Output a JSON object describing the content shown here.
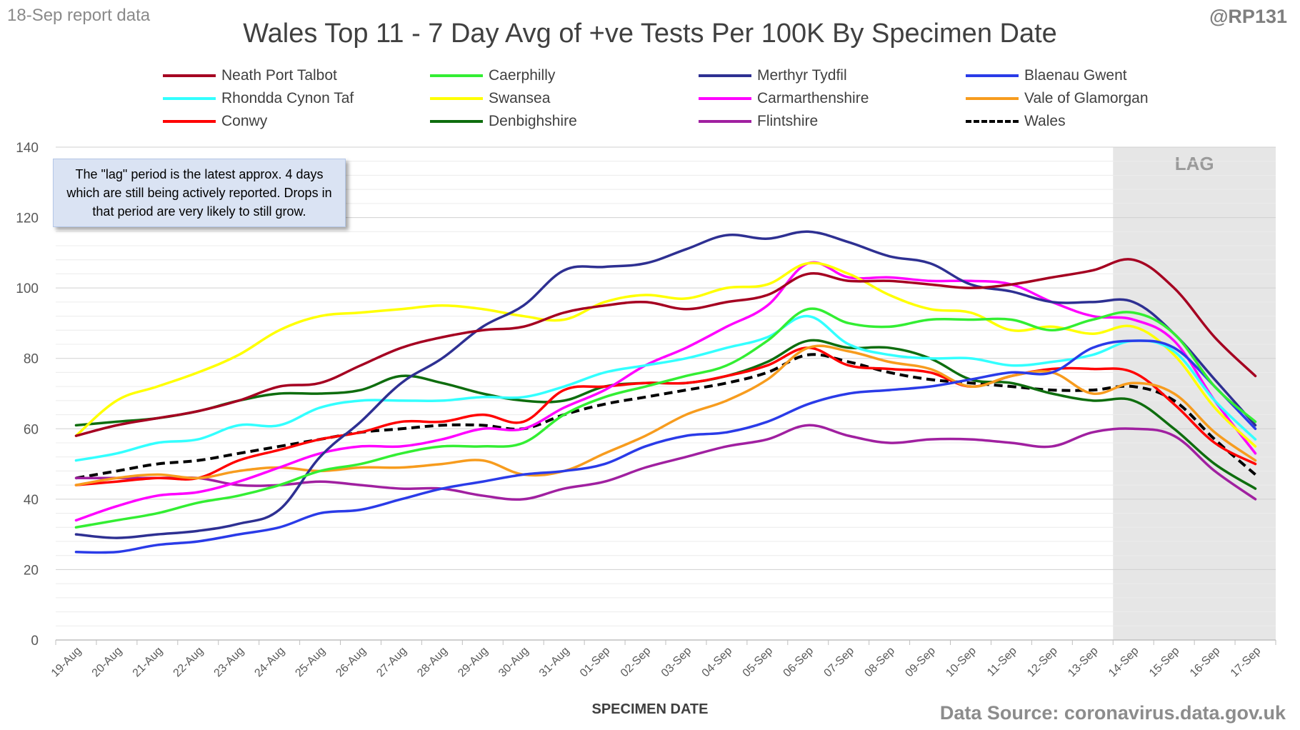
{
  "header": {
    "report_date": "18-Sep report data",
    "handle": "@RP131",
    "title": "Wales Top 11 - 7 Day Avg of +ve Tests Per 100K By Specimen Date"
  },
  "note": "The \"lag\" period is the latest approx. 4 days which are still being actively reported.  Drops in that period are very likely to still grow.",
  "footer": {
    "data_source": "Data Source: coronavirus.data.gov.uk"
  },
  "chart_data": {
    "type": "line",
    "title": "Wales Top 11 - 7 Day Avg of +ve Tests Per 100K By Specimen Date",
    "xlabel": "SPECIMEN DATE",
    "ylabel": "",
    "ylim": [
      0,
      140
    ],
    "yticks": [
      "0",
      "20",
      "40",
      "60",
      "80",
      "100",
      "120",
      "140"
    ],
    "grid": "horizontal",
    "legend_position": "top",
    "lag_label": "LAG",
    "lag_range": [
      "14-Sep",
      "17-Sep"
    ],
    "categories": [
      "19-Aug",
      "20-Aug",
      "21-Aug",
      "22-Aug",
      "23-Aug",
      "24-Aug",
      "25-Aug",
      "26-Aug",
      "27-Aug",
      "28-Aug",
      "29-Aug",
      "30-Aug",
      "31-Aug",
      "01-Sep",
      "02-Sep",
      "03-Sep",
      "04-Sep",
      "05-Sep",
      "06-Sep",
      "07-Sep",
      "08-Sep",
      "09-Sep",
      "10-Sep",
      "11-Sep",
      "12-Sep",
      "13-Sep",
      "14-Sep",
      "15-Sep",
      "16-Sep",
      "17-Sep"
    ],
    "series": [
      {
        "name": "Neath Port Talbot",
        "color": "#a50021",
        "dashed": false,
        "values": [
          58,
          61,
          63,
          65,
          68,
          72,
          73,
          78,
          83,
          86,
          88,
          89,
          93,
          95,
          96,
          94,
          96,
          98,
          104,
          102,
          102,
          101,
          100,
          101,
          103,
          105,
          108,
          100,
          86,
          75
        ]
      },
      {
        "name": "Caerphilly",
        "color": "#33ee33",
        "dashed": false,
        "values": [
          32,
          34,
          36,
          39,
          41,
          44,
          48,
          50,
          53,
          55,
          55,
          56,
          64,
          69,
          72,
          75,
          78,
          85,
          94,
          90,
          89,
          91,
          91,
          91,
          88,
          91,
          93,
          87,
          72,
          62
        ]
      },
      {
        "name": "Merthyr Tydfil",
        "color": "#2e3092",
        "dashed": false,
        "values": [
          30,
          29,
          30,
          31,
          33,
          37,
          52,
          62,
          73,
          80,
          89,
          95,
          105,
          106,
          107,
          111,
          115,
          114,
          116,
          113,
          109,
          107,
          101,
          99,
          96,
          96,
          96,
          87,
          74,
          61
        ]
      },
      {
        "name": "Blaenau Gwent",
        "color": "#2a3be8",
        "dashed": false,
        "values": [
          25,
          25,
          27,
          28,
          30,
          32,
          36,
          37,
          40,
          43,
          45,
          47,
          48,
          50,
          55,
          58,
          59,
          62,
          67,
          70,
          71,
          72,
          74,
          76,
          76,
          83,
          85,
          83,
          72,
          60
        ]
      },
      {
        "name": "Rhondda Cynon Taf",
        "color": "#33ffff",
        "dashed": false,
        "values": [
          51,
          53,
          56,
          57,
          61,
          61,
          66,
          68,
          68,
          68,
          69,
          69,
          72,
          76,
          78,
          80,
          83,
          86,
          92,
          84,
          81,
          80,
          80,
          78,
          79,
          81,
          85,
          82,
          68,
          57
        ]
      },
      {
        "name": "Swansea",
        "color": "#ffff00",
        "dashed": false,
        "values": [
          58,
          68,
          72,
          76,
          81,
          88,
          92,
          93,
          94,
          95,
          94,
          92,
          91,
          96,
          98,
          97,
          100,
          101,
          107,
          104,
          98,
          94,
          93,
          88,
          89,
          87,
          89,
          81,
          66,
          55
        ]
      },
      {
        "name": "Carmarthenshire",
        "color": "#ff00ff",
        "dashed": false,
        "values": [
          34,
          38,
          41,
          42,
          45,
          49,
          53,
          55,
          55,
          57,
          60,
          60,
          66,
          71,
          78,
          83,
          89,
          95,
          107,
          103,
          103,
          102,
          102,
          101,
          96,
          92,
          91,
          85,
          68,
          53
        ]
      },
      {
        "name": "Vale of Glamorgan",
        "color": "#f79c1e",
        "dashed": false,
        "values": [
          44,
          46,
          47,
          46,
          48,
          49,
          48,
          49,
          49,
          50,
          51,
          47,
          48,
          53,
          58,
          64,
          68,
          74,
          83,
          82,
          79,
          77,
          72,
          75,
          76,
          70,
          73,
          70,
          59,
          51
        ]
      },
      {
        "name": "Conwy",
        "color": "#ff0000",
        "dashed": false,
        "values": [
          44,
          45,
          46,
          46,
          51,
          54,
          57,
          59,
          62,
          62,
          64,
          62,
          71,
          72,
          73,
          73,
          75,
          78,
          83,
          78,
          77,
          76,
          72,
          75,
          77,
          77,
          76,
          67,
          56,
          50
        ]
      },
      {
        "name": "Denbighshire",
        "color": "#0e6d0e",
        "dashed": false,
        "values": [
          61,
          62,
          63,
          65,
          68,
          70,
          70,
          71,
          75,
          73,
          70,
          68,
          68,
          72,
          73,
          73,
          75,
          79,
          85,
          83,
          83,
          80,
          74,
          73,
          70,
          68,
          68,
          60,
          50,
          43
        ]
      },
      {
        "name": "Flintshire",
        "color": "#a020a0",
        "dashed": false,
        "values": [
          46,
          46,
          46,
          46,
          44,
          44,
          45,
          44,
          43,
          43,
          41,
          40,
          43,
          45,
          49,
          52,
          55,
          57,
          61,
          58,
          56,
          57,
          57,
          56,
          55,
          59,
          60,
          58,
          48,
          40
        ]
      },
      {
        "name": "Wales",
        "color": "#000000",
        "dashed": true,
        "values": [
          46,
          48,
          50,
          51,
          53,
          55,
          57,
          59,
          60,
          61,
          61,
          60,
          64,
          67,
          69,
          71,
          73,
          76,
          81,
          79,
          76,
          74,
          73,
          72,
          71,
          71,
          72,
          68,
          57,
          47
        ]
      }
    ]
  }
}
